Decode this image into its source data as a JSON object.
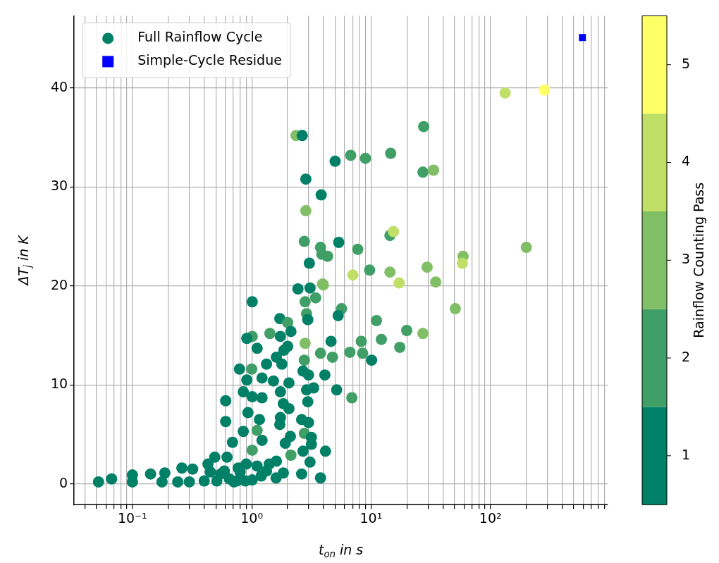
{
  "chart_data": {
    "type": "scatter",
    "xlabel": "t$_{on}$ in s",
    "ylabel": "ΔT$_{j}$ in K",
    "clabel": "Rainflow Counting Pass",
    "log": "x",
    "grid": true,
    "legend": "top left",
    "xlim": [
      0.0325,
      960
    ],
    "ylim": [
      -2.1,
      47.3
    ],
    "xticks": [
      {
        "value": 0.04,
        "label": null
      },
      {
        "value": 0.05,
        "label": null
      },
      {
        "value": 0.06,
        "label": null
      },
      {
        "value": 0.07,
        "label": null
      },
      {
        "value": 0.08,
        "label": null
      },
      {
        "value": 0.09,
        "label": null
      },
      {
        "value": 0.1,
        "label": "10⁻¹"
      },
      {
        "value": 0.2,
        "label": null
      },
      {
        "value": 0.3,
        "label": null
      },
      {
        "value": 0.4,
        "label": null
      },
      {
        "value": 0.5,
        "label": null
      },
      {
        "value": 0.6,
        "label": null
      },
      {
        "value": 0.7,
        "label": null
      },
      {
        "value": 0.8,
        "label": null
      },
      {
        "value": 0.9,
        "label": null
      },
      {
        "value": 1,
        "label": "10⁰"
      },
      {
        "value": 2,
        "label": null
      },
      {
        "value": 3,
        "label": null
      },
      {
        "value": 4,
        "label": null
      },
      {
        "value": 5,
        "label": null
      },
      {
        "value": 6,
        "label": null
      },
      {
        "value": 7,
        "label": null
      },
      {
        "value": 8,
        "label": null
      },
      {
        "value": 9,
        "label": null
      },
      {
        "value": 10,
        "label": "10¹"
      },
      {
        "value": 20,
        "label": null
      },
      {
        "value": 30,
        "label": null
      },
      {
        "value": 40,
        "label": null
      },
      {
        "value": 50,
        "label": null
      },
      {
        "value": 60,
        "label": null
      },
      {
        "value": 70,
        "label": null
      },
      {
        "value": 80,
        "label": null
      },
      {
        "value": 90,
        "label": null
      },
      {
        "value": 100,
        "label": "10²"
      },
      {
        "value": 200,
        "label": null
      },
      {
        "value": 300,
        "label": null
      },
      {
        "value": 400,
        "label": null
      },
      {
        "value": 500,
        "label": null
      },
      {
        "value": 600,
        "label": null
      },
      {
        "value": 700,
        "label": null
      },
      {
        "value": 800,
        "label": null
      },
      {
        "value": 900,
        "label": null
      }
    ],
    "yticks": [
      0,
      10,
      20,
      30,
      40
    ],
    "clim": [
      0.5,
      5.5
    ],
    "cticks": [
      1,
      2,
      3,
      4,
      5
    ],
    "series": [
      {
        "name": "Full Rainflow Cycle",
        "type": "scatter",
        "marker": "circle",
        "colors": [
          "#008066",
          "#008066",
          "#008066",
          "#008066",
          "#008066",
          "#008066",
          "#008066",
          "#008066",
          "#008066",
          "#008066",
          "#008066",
          "#008066",
          "#008066",
          "#008066",
          "#008066",
          "#008066",
          "#008066",
          "#008066",
          "#008066",
          "#008066",
          "#008066",
          "#008066",
          "#008066",
          "#008066",
          "#008066",
          "#008066",
          "#008066",
          "#008066",
          "#008066",
          "#008066",
          "#008066",
          "#008066",
          "#008066",
          "#008066",
          "#008066",
          "#008066",
          "#008066",
          "#008066",
          "#409f66",
          "#409f66",
          "#008066",
          "#008066",
          "#008066",
          "#008066",
          "#008066",
          "#008066",
          "#409f66",
          "#008066",
          "#008066",
          "#008066",
          "#409f66",
          "#008066",
          "#008066",
          "#008066",
          "#008066",
          "#409f66",
          "#008066",
          "#409f66",
          "#008066",
          "#008066",
          "#008066",
          "#008066",
          "#008066",
          "#008066",
          "#008066",
          "#008066",
          "#008066",
          "#008066",
          "#008066",
          "#008066",
          "#008066",
          "#008066",
          "#008066",
          "#409f66",
          "#008066",
          "#008066",
          "#80bf66",
          "#409f66",
          "#409f66",
          "#409f66",
          "#008066",
          "#80bf66",
          "#409f66",
          "#008066",
          "#008066",
          "#008066",
          "#008066",
          "#008066",
          "#008066",
          "#008066",
          "#409f66",
          "#008066",
          "#008066",
          "#008066",
          "#008066",
          "#008066",
          "#008066",
          "#008066",
          "#008066",
          "#008066",
          "#008066",
          "#409f66",
          "#409f66",
          "#409f66",
          "#008066",
          "#bfdf66",
          "#ffff66",
          "#409f66",
          "#80bf66",
          "#008066",
          "#008066",
          "#409f66",
          "#409f66",
          "#409f66",
          "#409f66",
          "#80bf66",
          "#008066",
          "#008066",
          "#80bf66",
          "#409f66",
          "#409f66",
          "#409f66",
          "#409f66",
          "#008066",
          "#409f66",
          "#008066",
          "#409f66",
          "#bfdf66",
          "#80bf66",
          "#80bf66",
          "#bfdf66",
          "#80bf66",
          "#80bf66",
          "#bfdf66",
          "#409f66",
          "#80bf66",
          "#bfdf66",
          "#80bf66",
          "#80bf66",
          "#409f66",
          "#409f66",
          "#80bf66",
          "#409f66",
          "#409f66",
          "#409f66",
          "#008066",
          "#409f66",
          "#409f66",
          "#409f66"
        ],
        "x": [
          0.052,
          0.067,
          0.1,
          0.1,
          0.142,
          0.187,
          0.177,
          0.24,
          0.26,
          0.32,
          0.3,
          0.4,
          0.43,
          0.49,
          0.51,
          0.62,
          0.59,
          0.71,
          0.885,
          1.01,
          0.77,
          1.11,
          1.33,
          1.61,
          1.84,
          0.55,
          0.65,
          0.8,
          0.9,
          1.2,
          1.4,
          1.6,
          0.45,
          0.75,
          0.605,
          0.605,
          0.69,
          0.85,
          1.01,
          1.11,
          1.22,
          0.85,
          1.01,
          1.22,
          0.93,
          1.16,
          1.01,
          0.91,
          1.11,
          0.79,
          1.0,
          0.91,
          1.22,
          1.01,
          1.33,
          1.42,
          1.72,
          2.0,
          2.13,
          1.74,
          1.86,
          2.0,
          1.61,
          1.79,
          1.52,
          2.05,
          1.74,
          1.84,
          2.05,
          1.74,
          1.72,
          2.11,
          1.91,
          2.13,
          2.44,
          3.08,
          3.93,
          3.43,
          2.8,
          2.88,
          2.95,
          2.8,
          2.76,
          2.69,
          2.99,
          3.3,
          2.88,
          2.95,
          2.62,
          2.99,
          2.76,
          3.16,
          3.16,
          2.69,
          3.08,
          2.62,
          3.77,
          4.15,
          4.1,
          4.62,
          5.15,
          3.77,
          4.75,
          5.66,
          5.3,
          133,
          284,
          27.6,
          2.35,
          2.65,
          5.0,
          6.75,
          8.97,
          14.6,
          27.2,
          33.4,
          2.84,
          3.82,
          2.84,
          2.76,
          3.77,
          4.32,
          3.87,
          5.36,
          7.73,
          3.04,
          14.4,
          15.4,
          200,
          59,
          58.2,
          29.5,
          34.8,
          7.03,
          9.73,
          14.4,
          17.2,
          3.98,
          50.8,
          11.1,
          19.9,
          27.2,
          17.4,
          12.2,
          8.28,
          10.1,
          6.9,
          6.65,
          8.5
        ],
        "values": [
          0.2,
          0.5,
          0.9,
          0.2,
          1.0,
          1.1,
          0.2,
          0.2,
          1.6,
          1.5,
          0.2,
          0.3,
          2.0,
          2.7,
          0.3,
          2.7,
          1.3,
          0.2,
          0.3,
          0.4,
          1.6,
          1.8,
          1.3,
          2.3,
          1.1,
          1.0,
          0.5,
          1.2,
          2.0,
          0.8,
          2.0,
          0.6,
          1.2,
          0.3,
          8.4,
          6.3,
          4.2,
          5.3,
          3.4,
          5.4,
          4.4,
          9.3,
          8.8,
          8.7,
          7.2,
          6.5,
          14.9,
          14.7,
          13.7,
          11.6,
          11.6,
          10.5,
          10.7,
          18.4,
          12.1,
          15.2,
          16.7,
          16.3,
          15.4,
          14.9,
          13.5,
          13.9,
          12.8,
          12.1,
          10.4,
          10.2,
          9.3,
          8.1,
          7.6,
          6.7,
          6.0,
          4.8,
          4.1,
          2.9,
          19.7,
          19.8,
          20.2,
          18.8,
          18.4,
          17.2,
          16.6,
          14.2,
          12.5,
          11.4,
          11.0,
          9.7,
          9.5,
          8.3,
          6.5,
          6.2,
          5.1,
          4.7,
          4.0,
          3.3,
          2.2,
          1.0,
          0.6,
          3.3,
          11.0,
          14.4,
          9.5,
          13.2,
          12.8,
          17.7,
          17.0,
          39.5,
          39.8,
          36.1,
          35.2,
          35.2,
          32.6,
          33.2,
          32.9,
          33.4,
          31.5,
          31.7,
          30.8,
          29.2,
          27.6,
          24.5,
          23.9,
          23.0,
          23.2,
          24.4,
          23.7,
          22.3,
          25.1,
          25.5,
          23.9,
          23.0,
          22.3,
          21.9,
          20.4,
          21.1,
          21.6,
          21.4,
          20.3,
          20.1,
          17.7,
          16.5,
          15.5,
          15.2,
          13.8,
          14.6,
          14.4,
          12.5,
          8.7,
          13.3,
          13.2
        ]
      },
      {
        "name": "Simple-Cycle Residue",
        "type": "scatter",
        "marker": "square",
        "color": "#0000ff",
        "x": [
          590
        ],
        "values": [
          45.1
        ]
      }
    ]
  }
}
